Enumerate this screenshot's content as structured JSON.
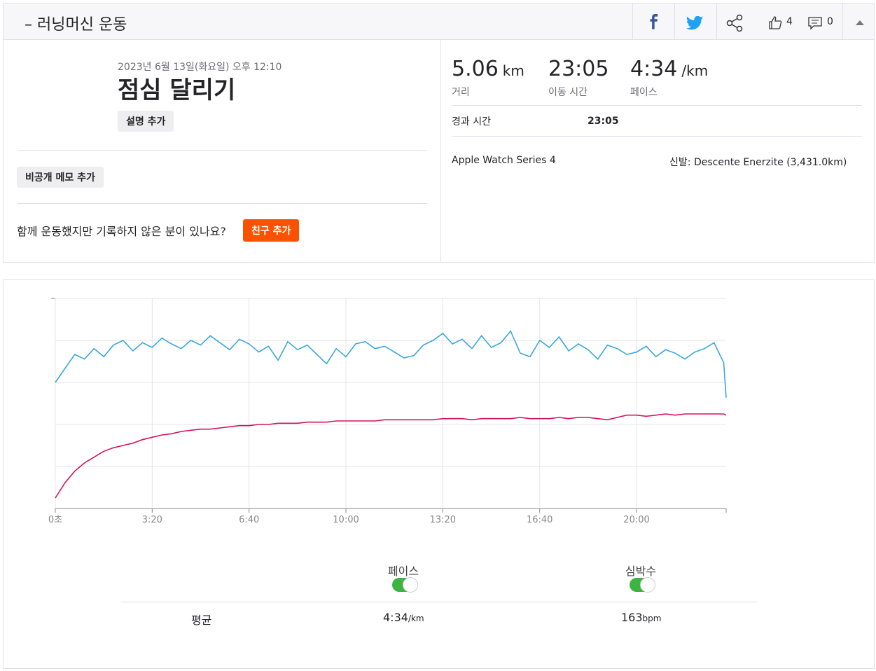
{
  "header": {
    "title": "– 러닝머신 운동",
    "kudos": "4",
    "comments": "0"
  },
  "activity": {
    "date": "2023년 6월 13일(화요일) 오후 12:10",
    "title": "점심 달리기",
    "add_description": "설명 추가",
    "private_note": "비공개 메모 추가",
    "prompt": "함께 운동했지만 기록하지 않은 분이 있나요?",
    "add_friend": "친구 추가"
  },
  "stats": [
    {
      "value": "5.06",
      "unit": "km",
      "label": "거리"
    },
    {
      "value": "23:05",
      "label": "이동 시간"
    },
    {
      "value": "4:34",
      "unit": "/km",
      "label": "페이스"
    }
  ],
  "elapsed": {
    "label": "경과 시간",
    "value": "23:05"
  },
  "device": "Apple Watch Series 4",
  "shoes": {
    "label": "신발:",
    "value": "Descente Enerzite (3,431.0km)"
  },
  "chart_data": {
    "type": "line",
    "x": [
      0,
      20,
      40,
      60,
      80,
      100,
      120,
      140,
      160,
      180,
      200,
      220,
      240,
      260,
      280,
      300,
      320,
      340,
      360,
      380,
      400,
      420,
      440,
      460,
      480,
      500,
      520,
      540,
      560,
      580,
      600,
      620,
      640,
      660,
      680,
      700,
      720,
      740,
      760,
      780,
      800,
      820,
      840,
      860,
      880,
      900,
      920,
      940,
      960,
      980,
      1000,
      1020,
      1040,
      1060,
      1080,
      1100,
      1120,
      1140,
      1160,
      1180,
      1200,
      1220,
      1240,
      1260,
      1280,
      1300,
      1320,
      1340,
      1360,
      1380,
      1385
    ],
    "xlim": [
      0,
      1385
    ],
    "xticks": [
      {
        "value": 0,
        "label": "0초"
      },
      {
        "value": 200,
        "label": "3:20"
      },
      {
        "value": 400,
        "label": "6:40"
      },
      {
        "value": 600,
        "label": "10:00"
      },
      {
        "value": 800,
        "label": "13:20"
      },
      {
        "value": 1000,
        "label": "16:40"
      },
      {
        "value": 1200,
        "label": "20:00"
      }
    ],
    "ylim": [
      420,
      240
    ],
    "yticks": [
      420,
      384,
      348,
      312,
      276,
      240
    ],
    "y2lim": [
      90,
      270
    ],
    "grid": true,
    "series": [
      {
        "name": "페이스",
        "color": "#3aa7dd",
        "values": [
          312,
          300,
          288,
          292,
          283,
          290,
          280,
          276,
          285,
          278,
          282,
          274,
          279,
          283,
          276,
          280,
          272,
          278,
          284,
          275,
          279,
          286,
          281,
          293,
          277,
          284,
          280,
          288,
          296,
          283,
          290,
          279,
          277,
          283,
          281,
          286,
          291,
          289,
          280,
          276,
          270,
          279,
          275,
          283,
          272,
          282,
          278,
          268,
          287,
          290,
          276,
          282,
          273,
          285,
          279,
          284,
          292,
          280,
          283,
          288,
          286,
          281,
          290,
          284,
          287,
          292,
          286,
          283,
          278,
          295,
          325
        ]
      },
      {
        "name": "심박수",
        "color": "#d4145a",
        "axis": "y2",
        "values": [
          99,
          112,
          122,
          129,
          134,
          139,
          142,
          144,
          146,
          149,
          151,
          153,
          154,
          156,
          157,
          158,
          158,
          159,
          160,
          161,
          161,
          162,
          162,
          163,
          163,
          163,
          164,
          164,
          164,
          165,
          165,
          165,
          165,
          165,
          166,
          166,
          166,
          166,
          166,
          166,
          167,
          167,
          167,
          166,
          167,
          167,
          167,
          167,
          168,
          167,
          167,
          167,
          168,
          167,
          168,
          168,
          167,
          166,
          168,
          170,
          170,
          169,
          170,
          171,
          170,
          171,
          171,
          171,
          171,
          171,
          170
        ]
      }
    ]
  },
  "averages": {
    "label": "평균",
    "pace": {
      "value": "4:34",
      "unit": "/km"
    },
    "heart_rate": {
      "value": "163",
      "unit": "bpm"
    }
  }
}
